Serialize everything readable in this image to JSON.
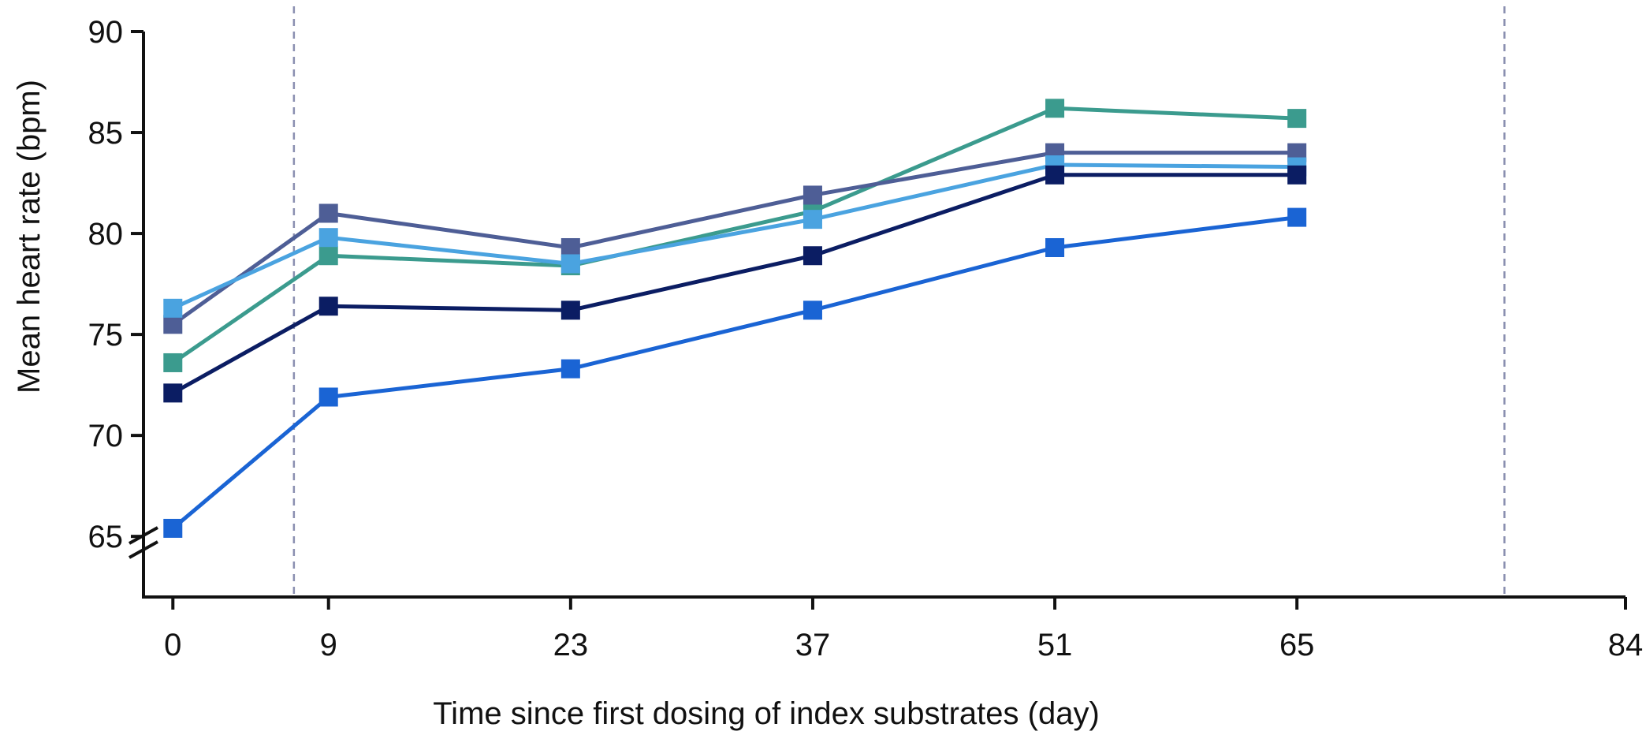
{
  "chart_data": {
    "type": "line",
    "title": "",
    "xlabel": "Time since first dosing of index substrates (day)",
    "ylabel": "Mean heart rate (bpm)",
    "x": [
      0,
      9,
      23,
      37,
      51,
      65
    ],
    "xticks": [
      0,
      9,
      23,
      37,
      51,
      65,
      84
    ],
    "yticks": [
      65,
      70,
      75,
      80,
      85,
      90
    ],
    "xlim": [
      -1.7,
      84
    ],
    "ylim": [
      62,
      90
    ],
    "axis_break": "y",
    "reference_lines_x": [
      7,
      77
    ],
    "grid": false,
    "legend": "none",
    "series": [
      {
        "color": "#3b9b8e",
        "values": [
          73.6,
          78.9,
          78.4,
          81.1,
          86.2,
          85.7
        ]
      },
      {
        "color": "#4e5e96",
        "values": [
          75.5,
          81.0,
          79.3,
          81.9,
          84.0,
          84.0
        ]
      },
      {
        "color": "#4aa3e0",
        "values": [
          76.3,
          79.8,
          78.5,
          80.7,
          83.4,
          83.3
        ]
      },
      {
        "color": "#0b1d63",
        "values": [
          72.1,
          76.4,
          76.2,
          78.9,
          82.9,
          82.9
        ]
      },
      {
        "color": "#1a64d4",
        "values": [
          65.4,
          71.9,
          73.3,
          76.2,
          79.3,
          80.8
        ]
      }
    ]
  }
}
